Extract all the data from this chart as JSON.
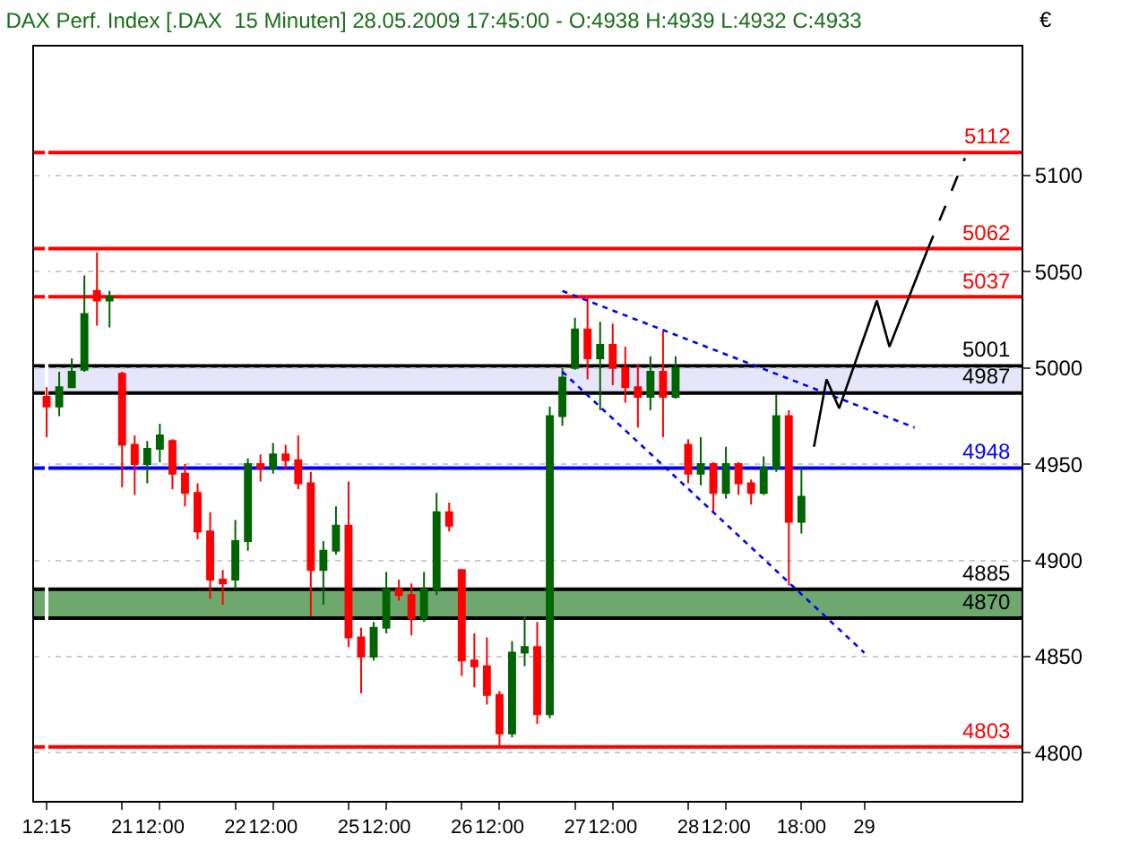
{
  "chart_data": {
    "type": "candlestick",
    "title": "DAX Perf. Index [.DAX  15 Minuten] 28.05.2009 17:45:00 - O:4938 H:4939 L:4932 C:4933",
    "ylabel": "€",
    "categories": [
      "12:15",
      null,
      null,
      null,
      null,
      null,
      "21",
      null,
      null,
      "12:00",
      null,
      null,
      null,
      null,
      null,
      "22",
      null,
      null,
      "12:00",
      null,
      null,
      null,
      null,
      null,
      "25",
      null,
      null,
      "12:00",
      null,
      null,
      null,
      null,
      null,
      "26",
      null,
      null,
      "12:00",
      null,
      null,
      null,
      null,
      null,
      "27",
      null,
      null,
      "12:00",
      null,
      null,
      null,
      null,
      null,
      "28",
      null,
      null,
      "12:00",
      null,
      null,
      null,
      null,
      null,
      "18:00",
      null,
      null,
      null,
      null,
      "29",
      null,
      null,
      null,
      null,
      null,
      null,
      null,
      null,
      null,
      null,
      null,
      null
    ],
    "ohlc": [
      [
        4985,
        4990,
        4964,
        4980
      ],
      [
        4980,
        4998,
        4975,
        4990
      ],
      [
        4990,
        5005,
        4990,
        4998
      ],
      [
        4999,
        5048,
        4998,
        5028
      ],
      [
        5040,
        5060,
        5022,
        5035
      ],
      [
        5035,
        5040,
        5021,
        5037
      ],
      [
        4997,
        4998,
        4938,
        4960
      ],
      [
        4960,
        4965,
        4934,
        4950
      ],
      [
        4950,
        4962,
        4940,
        4958
      ],
      [
        4958,
        4971,
        4951,
        4965
      ],
      [
        4962,
        4963,
        4937,
        4945
      ],
      [
        4945,
        4950,
        4928,
        4935
      ],
      [
        4935,
        4940,
        4911,
        4915
      ],
      [
        4915,
        4925,
        4880,
        4890
      ],
      [
        4890,
        4895,
        4877,
        4888
      ],
      [
        4890,
        4921,
        4885,
        4910
      ],
      [
        4910,
        4953,
        4905,
        4950
      ],
      [
        4950,
        4955,
        4941,
        4948
      ],
      [
        4948,
        4961,
        4945,
        4955
      ],
      [
        4955,
        4960,
        4947,
        4952
      ],
      [
        4952,
        4965,
        4937,
        4940
      ],
      [
        4940,
        4946,
        4871,
        4895
      ],
      [
        4895,
        4910,
        4877,
        4905
      ],
      [
        4905,
        4928,
        4903,
        4918
      ],
      [
        4918,
        4941,
        4855,
        4860
      ],
      [
        4860,
        4865,
        4831,
        4850
      ],
      [
        4850,
        4868,
        4848,
        4865
      ],
      [
        4865,
        4894,
        4862,
        4885
      ],
      [
        4885,
        4890,
        4879,
        4882
      ],
      [
        4882,
        4888,
        4861,
        4870
      ],
      [
        4870,
        4894,
        4868,
        4885
      ],
      [
        4885,
        4935,
        4882,
        4925
      ],
      [
        4925,
        4930,
        4915,
        4918
      ],
      [
        4895,
        4895,
        4840,
        4848
      ],
      [
        4848,
        4862,
        4834,
        4845
      ],
      [
        4845,
        4860,
        4825,
        4830
      ],
      [
        4830,
        4832,
        4803,
        4810
      ],
      [
        4810,
        4858,
        4808,
        4852
      ],
      [
        4852,
        4871,
        4845,
        4855
      ],
      [
        4855,
        4868,
        4815,
        4820
      ],
      [
        4820,
        4980,
        4818,
        4975
      ],
      [
        4975,
        5000,
        4970,
        4995
      ],
      [
        5000,
        5026,
        4999,
        5020
      ],
      [
        5020,
        5037,
        4994,
        5005
      ],
      [
        5005,
        5024,
        4978,
        5012
      ],
      [
        5012,
        5023,
        4991,
        5000
      ],
      [
        5000,
        5011,
        4982,
        4990
      ],
      [
        4990,
        5002,
        4969,
        4985
      ],
      [
        4985,
        5006,
        4978,
        4998
      ],
      [
        4998,
        5019,
        4964,
        4985
      ],
      [
        4985,
        5006,
        4984,
        5000
      ],
      [
        4960,
        4963,
        4940,
        4945
      ],
      [
        4945,
        4964,
        4939,
        4950
      ],
      [
        4950,
        4951,
        4925,
        4935
      ],
      [
        4935,
        4959,
        4932,
        4950
      ],
      [
        4950,
        4951,
        4934,
        4940
      ],
      [
        4940,
        4942,
        4929,
        4935
      ],
      [
        4935,
        4954,
        4934,
        4948
      ],
      [
        4948,
        4986,
        4946,
        4975
      ],
      [
        4975,
        4978,
        4887,
        4920
      ],
      [
        4920,
        4948,
        4914,
        4933
      ],
      null,
      null,
      null,
      null,
      null,
      null,
      null,
      null,
      null,
      null,
      null,
      null,
      null,
      null,
      null,
      null,
      null
    ],
    "series": [
      {
        "type": "line",
        "color": "#0000ff",
        "line_style": "dotted",
        "values": [
          null,
          null,
          null,
          null,
          null,
          null,
          null,
          null,
          null,
          null,
          null,
          null,
          null,
          null,
          null,
          null,
          null,
          null,
          null,
          null,
          null,
          null,
          null,
          null,
          null,
          null,
          null,
          null,
          null,
          null,
          null,
          null,
          null,
          null,
          null,
          null,
          null,
          null,
          null,
          null,
          null,
          5040,
          null,
          null,
          null,
          null,
          null,
          null,
          null,
          null,
          null,
          null,
          null,
          null,
          null,
          null,
          null,
          null,
          null,
          null,
          null,
          null,
          null,
          null,
          null,
          null,
          null,
          null,
          null,
          4969,
          null,
          null,
          null,
          null,
          null,
          null,
          null,
          null
        ]
      },
      {
        "type": "line",
        "color": "#0000ff",
        "line_style": "dotted",
        "values": [
          null,
          null,
          null,
          null,
          null,
          null,
          null,
          null,
          null,
          null,
          null,
          null,
          null,
          null,
          null,
          null,
          null,
          null,
          null,
          null,
          null,
          null,
          null,
          null,
          null,
          null,
          null,
          null,
          null,
          null,
          null,
          null,
          null,
          null,
          null,
          null,
          null,
          null,
          null,
          null,
          null,
          4998,
          null,
          null,
          null,
          null,
          null,
          null,
          null,
          null,
          null,
          null,
          null,
          null,
          null,
          null,
          null,
          null,
          null,
          null,
          null,
          null,
          null,
          null,
          null,
          4852,
          null,
          null,
          null,
          null,
          null,
          null,
          null,
          null,
          null,
          null,
          null,
          null
        ]
      },
      {
        "type": "line",
        "color": "#000000",
        "line_style": "solid",
        "values": [
          null,
          null,
          null,
          null,
          null,
          null,
          null,
          null,
          null,
          null,
          null,
          null,
          null,
          null,
          null,
          null,
          null,
          null,
          null,
          null,
          null,
          null,
          null,
          null,
          null,
          null,
          null,
          null,
          null,
          null,
          null,
          null,
          null,
          null,
          null,
          null,
          null,
          null,
          null,
          null,
          null,
          null,
          null,
          null,
          null,
          null,
          null,
          null,
          null,
          null,
          null,
          null,
          null,
          null,
          null,
          null,
          null,
          null,
          null,
          null,
          null,
          4959,
          4994,
          4979,
          null,
          null,
          5035,
          5011,
          null,
          null,
          5061,
          null,
          null,
          null,
          null,
          null,
          null,
          null
        ]
      },
      {
        "type": "line",
        "color": "#000000",
        "line_style": "dashed",
        "values": [
          null,
          null,
          null,
          null,
          null,
          null,
          null,
          null,
          null,
          null,
          null,
          null,
          null,
          null,
          null,
          null,
          null,
          null,
          null,
          null,
          null,
          null,
          null,
          null,
          null,
          null,
          null,
          null,
          null,
          null,
          null,
          null,
          null,
          null,
          null,
          null,
          null,
          null,
          null,
          null,
          null,
          null,
          null,
          null,
          null,
          null,
          null,
          null,
          null,
          null,
          null,
          null,
          null,
          null,
          null,
          null,
          null,
          null,
          null,
          null,
          null,
          null,
          null,
          null,
          null,
          null,
          null,
          null,
          null,
          null,
          5061,
          null,
          null,
          5109,
          null,
          null,
          null,
          null
        ]
      }
    ],
    "ylim": [
      4775,
      5167
    ],
    "yticks": [
      4800,
      4850,
      4900,
      4950,
      5000,
      5050,
      5100
    ],
    "grid": "y",
    "bands": [
      {
        "axis": "y",
        "from": 4987,
        "to": 5001,
        "color": "#e6e6fa"
      },
      {
        "axis": "y",
        "from": 4870,
        "to": 4885,
        "color": "#6fa86f"
      }
    ],
    "ref_lines": [
      {
        "axis": "y",
        "value": 5112,
        "label": "5112",
        "color": "#ff0000"
      },
      {
        "axis": "y",
        "value": 5062,
        "label": "5062",
        "color": "#ff0000"
      },
      {
        "axis": "y",
        "value": 5037,
        "label": "5037",
        "color": "#ff0000"
      },
      {
        "axis": "y",
        "value": 5001,
        "label": "5001",
        "color": "#000000"
      },
      {
        "axis": "y",
        "value": 4987,
        "label": "4987",
        "color": "#000000"
      },
      {
        "axis": "y",
        "value": 4948,
        "label": "4948",
        "color": "#0000ff"
      },
      {
        "axis": "y",
        "value": 4885,
        "label": "4885",
        "color": "#000000"
      },
      {
        "axis": "y",
        "value": 4870,
        "label": "4870",
        "color": "#000000"
      },
      {
        "axis": "y",
        "value": 4803,
        "label": "4803",
        "color": "#ff0000"
      }
    ]
  }
}
